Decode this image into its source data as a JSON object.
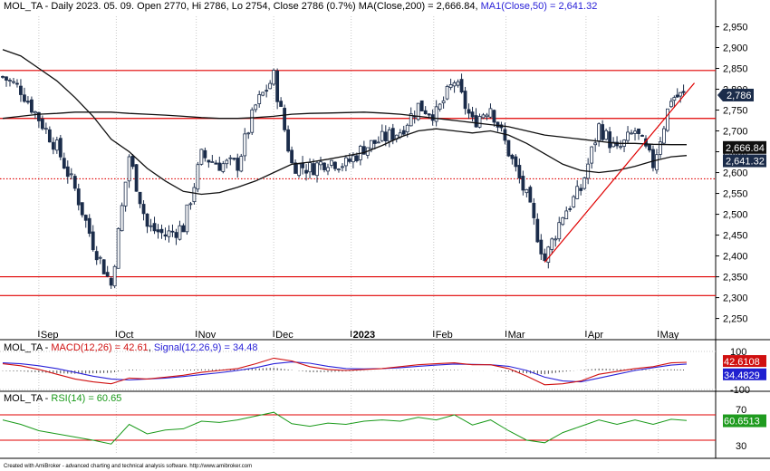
{
  "colors": {
    "candle": "#1b2c4a",
    "hline": "#e00000",
    "trend": "#e00000",
    "ma": "#101010",
    "macd": "#d01010",
    "signal": "#2a22d8",
    "rsi": "#1a9a1a",
    "grid": "#c9c9c9",
    "label_bg": "#1b2c4a",
    "label_blue": "#2020d0",
    "label_green": "#1f9b1f"
  },
  "price_panel": {
    "header": {
      "prefix": "MOL_TA - Daily 2023. 05. 09. Open 2770, Hi 2786, Lo 2754, Close 2786 (0.7%) MA(Close,200) = 2,666.84, ",
      "ma50": "MA1(Close,50) = 2,641.32"
    },
    "y_ticks": [
      "2,950",
      "2,900",
      "2,850",
      "2,800",
      "2,750",
      "2,700",
      "2,650",
      "2,600",
      "2,550",
      "2,500",
      "2,450",
      "2,400",
      "2,350",
      "2,300",
      "2,250"
    ],
    "last_close_label": "2,786",
    "ma200_label": "2,666.84",
    "ma50_label": "2,641.32"
  },
  "x_labels": [
    "Sep",
    "Oct",
    "Nov",
    "Dec",
    "2023",
    "Feb",
    "Mar",
    "Apr",
    "May"
  ],
  "macd_panel": {
    "prefix": "MOL_TA - ",
    "macd_name": "MACD(12,26) = 42.61",
    "signal_name": "Signal(12,26,9) = 34.48",
    "ticks": [
      "100",
      "-100"
    ],
    "macd_label": "42.6108",
    "signal_label": "34.4829"
  },
  "rsi_panel": {
    "prefix": "MOL_TA - ",
    "rsi_name": "RSI(14) = 60.65",
    "ticks": [
      "70",
      "30"
    ],
    "rsi_label": "60.6513"
  },
  "footer": "Created with AmiBroker - advanced charting and technical analysis software. http://www.amibroker.com",
  "chart_data": [
    {
      "type": "candlestick",
      "title": "MOL_TA - Daily 2023. 05. 09. Open 2770, Hi 2786, Lo 2754, Close 2786 (0.7%)",
      "ylim": [
        2210,
        2975
      ],
      "x_range": [
        "2022-08-17",
        "2023-05-09"
      ],
      "horizontal_lines": [
        2845,
        2730,
        2585,
        2350,
        2305
      ],
      "trendline": {
        "from": {
          "date": "2023-03-15",
          "value": 2385
        },
        "to": {
          "date": "2023-05-12",
          "value": 2815
        }
      },
      "closes_by_week": [
        {
          "date": "2022-08-17",
          "close": 2830
        },
        {
          "date": "2022-08-24",
          "close": 2800
        },
        {
          "date": "2022-08-31",
          "close": 2730
        },
        {
          "date": "2022-09-07",
          "close": 2660
        },
        {
          "date": "2022-09-14",
          "close": 2560
        },
        {
          "date": "2022-09-21",
          "close": 2430
        },
        {
          "date": "2022-09-28",
          "close": 2330
        },
        {
          "date": "2022-10-05",
          "close": 2640
        },
        {
          "date": "2022-10-12",
          "close": 2470
        },
        {
          "date": "2022-10-19",
          "close": 2450
        },
        {
          "date": "2022-10-26",
          "close": 2470
        },
        {
          "date": "2022-11-02",
          "close": 2640
        },
        {
          "date": "2022-11-09",
          "close": 2620
        },
        {
          "date": "2022-11-16",
          "close": 2620
        },
        {
          "date": "2022-11-23",
          "close": 2760
        },
        {
          "date": "2022-11-30",
          "close": 2830
        },
        {
          "date": "2022-12-07",
          "close": 2620
        },
        {
          "date": "2022-12-14",
          "close": 2610
        },
        {
          "date": "2022-12-21",
          "close": 2630
        },
        {
          "date": "2022-12-28",
          "close": 2620
        },
        {
          "date": "2023-01-04",
          "close": 2660
        },
        {
          "date": "2023-01-11",
          "close": 2680
        },
        {
          "date": "2023-01-18",
          "close": 2700
        },
        {
          "date": "2023-01-25",
          "close": 2760
        },
        {
          "date": "2023-02-01",
          "close": 2740
        },
        {
          "date": "2023-02-08",
          "close": 2820
        },
        {
          "date": "2023-02-15",
          "close": 2720
        },
        {
          "date": "2023-02-22",
          "close": 2760
        },
        {
          "date": "2023-03-01",
          "close": 2650
        },
        {
          "date": "2023-03-08",
          "close": 2540
        },
        {
          "date": "2023-03-15",
          "close": 2390
        },
        {
          "date": "2023-03-22",
          "close": 2500
        },
        {
          "date": "2023-03-29",
          "close": 2560
        },
        {
          "date": "2023-04-05",
          "close": 2710
        },
        {
          "date": "2023-04-12",
          "close": 2650
        },
        {
          "date": "2023-04-19",
          "close": 2700
        },
        {
          "date": "2023-04-26",
          "close": 2620
        },
        {
          "date": "2023-05-03",
          "close": 2780
        },
        {
          "date": "2023-05-09",
          "close": 2786
        }
      ],
      "series": [
        {
          "name": "MA(Close,200)",
          "values_by_week": [
            2730,
            2735,
            2740,
            2742,
            2745,
            2745,
            2745,
            2742,
            2740,
            2738,
            2735,
            2732,
            2730,
            2730,
            2732,
            2735,
            2740,
            2742,
            2743,
            2744,
            2745,
            2743,
            2740,
            2735,
            2730,
            2725,
            2720,
            2715,
            2710,
            2700,
            2690,
            2685,
            2680,
            2675,
            2670,
            2670,
            2668,
            2667,
            2667
          ]
        },
        {
          "name": "MA1(Close,50)",
          "values_by_week": [
            2895,
            2880,
            2850,
            2820,
            2780,
            2735,
            2680,
            2650,
            2610,
            2580,
            2555,
            2548,
            2552,
            2565,
            2580,
            2600,
            2620,
            2625,
            2632,
            2640,
            2648,
            2665,
            2685,
            2700,
            2705,
            2700,
            2695,
            2700,
            2690,
            2670,
            2645,
            2620,
            2605,
            2600,
            2605,
            2615,
            2628,
            2638,
            2641
          ]
        }
      ]
    },
    {
      "type": "line",
      "title": "MACD(12,26) = 42.61, Signal(12,26,9) = 34.48",
      "ylim": [
        -100,
        100
      ],
      "series": [
        {
          "name": "MACD(12,26)",
          "values_by_week": [
            35,
            25,
            5,
            -20,
            -45,
            -60,
            -70,
            -40,
            -45,
            -35,
            -25,
            -10,
            0,
            10,
            35,
            65,
            50,
            20,
            5,
            0,
            5,
            10,
            20,
            30,
            35,
            40,
            30,
            30,
            10,
            -30,
            -75,
            -70,
            -55,
            -20,
            -5,
            10,
            20,
            40,
            43
          ]
        },
        {
          "name": "Signal(12,26,9)",
          "values_by_week": [
            40,
            35,
            25,
            10,
            -10,
            -30,
            -45,
            -50,
            -45,
            -40,
            -32,
            -22,
            -12,
            0,
            15,
            35,
            45,
            38,
            22,
            10,
            8,
            10,
            15,
            22,
            28,
            34,
            32,
            30,
            22,
            0,
            -35,
            -55,
            -60,
            -40,
            -20,
            0,
            15,
            28,
            34
          ]
        }
      ]
    },
    {
      "type": "line",
      "title": "RSI(14) = 60.65",
      "ylim": [
        10,
        90
      ],
      "levels": [
        70,
        30
      ],
      "series": [
        {
          "name": "RSI(14)",
          "values_by_week": [
            62,
            55,
            45,
            40,
            35,
            30,
            24,
            55,
            40,
            46,
            48,
            60,
            58,
            62,
            68,
            74,
            56,
            52,
            57,
            55,
            60,
            62,
            60,
            66,
            62,
            70,
            54,
            62,
            45,
            30,
            26,
            42,
            52,
            62,
            55,
            62,
            55,
            63,
            61
          ]
        }
      ]
    }
  ]
}
